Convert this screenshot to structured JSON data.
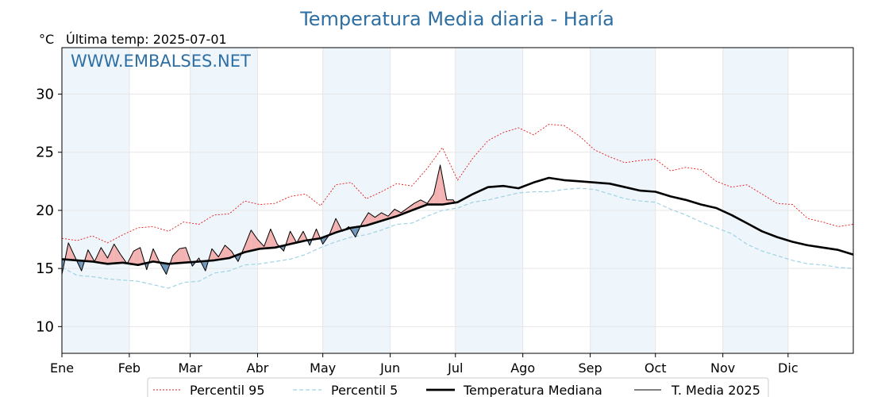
{
  "header": {
    "title": "Temperatura Media diaria - Haría",
    "unit": "°C",
    "last_temp": "Última temp: 2025-07-01",
    "watermark": "WWW.EMBALSES.NET"
  },
  "colors": {
    "title": "#2e6fa3",
    "p95": "#e41a1c",
    "p5": "#9fd3e3",
    "median": "#000000",
    "current": "#000000",
    "above_fill": "#f4b3b3",
    "below_fill": "#6f95b8",
    "month_band": "#eef5fb"
  },
  "legend": {
    "p95": "Percentil 95",
    "p5": "Percentil 5",
    "median": "Temperatura Mediana",
    "current": "T. Media 2025"
  },
  "chart_data": {
    "type": "line",
    "x_unit": "day of year",
    "xlim": [
      1,
      365
    ],
    "ylim": [
      7.7,
      34
    ],
    "yticks": [
      10,
      15,
      20,
      25,
      30
    ],
    "months": [
      "Ene",
      "Feb",
      "Mar",
      "Abr",
      "May",
      "Jun",
      "Jul",
      "Ago",
      "Sep",
      "Oct",
      "Nov",
      "Dic"
    ],
    "month_start_days": [
      1,
      32,
      60,
      91,
      121,
      152,
      182,
      213,
      244,
      274,
      305,
      335
    ],
    "grid": true,
    "legend_position": "bottom",
    "series": [
      {
        "name": "Percentil 95",
        "style": "dotted-red",
        "x": [
          1,
          8,
          15,
          22,
          29,
          36,
          43,
          50,
          57,
          64,
          71,
          78,
          85,
          92,
          99,
          106,
          113,
          120,
          127,
          134,
          141,
          148,
          155,
          162,
          169,
          176,
          183,
          190,
          197,
          204,
          211,
          218,
          225,
          232,
          239,
          246,
          253,
          260,
          267,
          274,
          281,
          288,
          295,
          302,
          309,
          316,
          323,
          330,
          337,
          344,
          351,
          358,
          365
        ],
        "y": [
          17.6,
          17.4,
          17.8,
          17.2,
          17.9,
          18.5,
          18.6,
          18.2,
          19.0,
          18.8,
          19.6,
          19.7,
          20.8,
          20.5,
          20.6,
          21.2,
          21.4,
          20.4,
          22.2,
          22.4,
          21.0,
          21.6,
          22.3,
          22.1,
          23.6,
          25.4,
          22.6,
          24.5,
          26.0,
          26.7,
          27.1,
          26.5,
          27.4,
          27.3,
          26.4,
          25.2,
          24.6,
          24.1,
          24.3,
          24.4,
          23.4,
          23.7,
          23.5,
          22.5,
          22.0,
          22.2,
          21.4,
          20.6,
          20.5,
          19.3,
          19.0,
          18.6,
          18.8
        ]
      },
      {
        "name": "Percentil 5",
        "style": "dashed-lightblue",
        "x": [
          1,
          8,
          15,
          22,
          29,
          36,
          43,
          50,
          57,
          64,
          71,
          78,
          85,
          92,
          99,
          106,
          113,
          120,
          127,
          134,
          141,
          148,
          155,
          162,
          169,
          176,
          183,
          190,
          197,
          204,
          211,
          218,
          225,
          232,
          239,
          246,
          253,
          260,
          267,
          274,
          281,
          288,
          295,
          302,
          309,
          316,
          323,
          330,
          337,
          344,
          351,
          358,
          365
        ],
        "y": [
          15.1,
          14.4,
          14.3,
          14.1,
          14.0,
          13.9,
          13.6,
          13.3,
          13.8,
          13.9,
          14.6,
          14.8,
          15.3,
          15.4,
          15.6,
          15.8,
          16.2,
          16.8,
          17.3,
          17.7,
          17.9,
          18.3,
          18.8,
          18.9,
          19.5,
          20.0,
          20.2,
          20.7,
          20.9,
          21.2,
          21.5,
          21.6,
          21.6,
          21.8,
          21.9,
          21.8,
          21.4,
          21.0,
          20.8,
          20.7,
          20.1,
          19.6,
          19.0,
          18.5,
          18.0,
          17.1,
          16.5,
          16.1,
          15.7,
          15.4,
          15.3,
          15.1,
          15.0
        ]
      },
      {
        "name": "Temperatura Mediana",
        "style": "thick-black",
        "x": [
          1,
          8,
          15,
          22,
          29,
          36,
          43,
          50,
          57,
          64,
          71,
          78,
          85,
          92,
          99,
          106,
          113,
          120,
          127,
          134,
          141,
          148,
          155,
          162,
          169,
          176,
          183,
          190,
          197,
          204,
          211,
          218,
          225,
          232,
          239,
          246,
          253,
          260,
          267,
          274,
          281,
          288,
          295,
          302,
          309,
          316,
          323,
          330,
          337,
          344,
          351,
          358,
          365
        ],
        "y": [
          15.8,
          15.7,
          15.6,
          15.4,
          15.5,
          15.3,
          15.6,
          15.4,
          15.5,
          15.6,
          15.7,
          15.9,
          16.4,
          16.7,
          16.8,
          17.1,
          17.4,
          17.6,
          18.1,
          18.5,
          18.7,
          19.1,
          19.5,
          20.0,
          20.5,
          20.5,
          20.7,
          21.4,
          22.0,
          22.1,
          21.9,
          22.4,
          22.8,
          22.6,
          22.5,
          22.4,
          22.3,
          22.0,
          21.7,
          21.6,
          21.2,
          20.9,
          20.5,
          20.2,
          19.6,
          18.9,
          18.2,
          17.7,
          17.3,
          17.0,
          16.8,
          16.6,
          16.2
        ]
      },
      {
        "name": "T. Media 2025",
        "style": "thin-black",
        "x": [
          1,
          4,
          7,
          10,
          13,
          16,
          19,
          22,
          25,
          28,
          31,
          34,
          37,
          40,
          43,
          46,
          49,
          52,
          55,
          58,
          61,
          64,
          67,
          70,
          73,
          76,
          79,
          82,
          85,
          88,
          91,
          94,
          97,
          100,
          103,
          106,
          109,
          112,
          115,
          118,
          121,
          124,
          127,
          130,
          133,
          136,
          139,
          142,
          145,
          148,
          151,
          154,
          157,
          160,
          163,
          166,
          169,
          172,
          175,
          178,
          181,
          182
        ],
        "y": [
          14.5,
          17.2,
          16.0,
          14.8,
          16.6,
          15.6,
          16.8,
          15.9,
          17.1,
          16.2,
          15.4,
          16.5,
          16.8,
          14.9,
          16.7,
          15.5,
          14.5,
          16.1,
          16.7,
          16.8,
          15.2,
          15.9,
          14.8,
          16.7,
          16.0,
          17.0,
          16.5,
          15.6,
          16.9,
          18.3,
          17.5,
          16.9,
          18.4,
          17.1,
          16.5,
          18.2,
          17.2,
          18.2,
          17.0,
          18.4,
          17.1,
          17.9,
          19.3,
          18.2,
          18.6,
          17.7,
          18.9,
          19.8,
          19.4,
          19.8,
          19.5,
          20.1,
          19.8,
          20.2,
          20.6,
          20.9,
          20.6,
          21.4,
          23.9,
          20.9,
          20.9,
          20.6
        ]
      }
    ]
  }
}
